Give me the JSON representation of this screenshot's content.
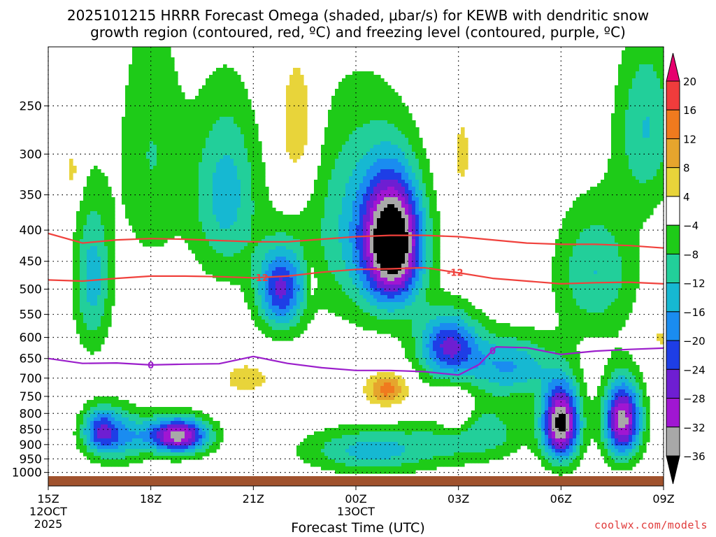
{
  "title_line1": "2025101215 HRRR Forecast Omega (shaded, μbar/s) for KEWB with dendritic snow",
  "title_line2": "growth region (contoured, red, ºC) and freezing level (contoured, purple, ºC)",
  "credit": "coolwx.com/models",
  "chart_data": {
    "type": "contour",
    "xlabel": "Forecast Time (UTC)",
    "ylabel": "",
    "x_ticks": [
      {
        "label": "15Z",
        "sub1": "12OCT",
        "sub2": "2025",
        "hours": 0
      },
      {
        "label": "18Z",
        "sub1": "",
        "sub2": "",
        "hours": 3
      },
      {
        "label": "21Z",
        "sub1": "",
        "sub2": "",
        "hours": 6
      },
      {
        "label": "00Z",
        "sub1": "13OCT",
        "sub2": "",
        "hours": 9
      },
      {
        "label": "03Z",
        "sub1": "",
        "sub2": "",
        "hours": 12
      },
      {
        "label": "06Z",
        "sub1": "",
        "sub2": "",
        "hours": 15
      },
      {
        "label": "09Z",
        "sub1": "",
        "sub2": "",
        "hours": 18
      }
    ],
    "x_range_hours": [
      0,
      18
    ],
    "y_axis": "pressure_hPa",
    "y_ticks": [
      250,
      300,
      350,
      400,
      450,
      500,
      550,
      600,
      650,
      700,
      750,
      800,
      850,
      900,
      950,
      1000
    ],
    "y_range": [
      200,
      1025
    ],
    "y_scale": "log_pressure_inverted",
    "grid": "dotted",
    "colorbar": {
      "labels": [
        "20",
        "16",
        "12",
        "8",
        "4",
        "−4",
        "−8",
        "−12",
        "−16",
        "−20",
        "−24",
        "−28",
        "−32",
        "−36"
      ],
      "colors": [
        "#e6006e",
        "#f03c3c",
        "#f07a1e",
        "#e6a52d",
        "#e8d43a",
        "#ffffff",
        "#1ecb18",
        "#22cf9a",
        "#16b8d2",
        "#1a8cf0",
        "#1e3ee6",
        "#6e1ed2",
        "#a016d2",
        "#a8a8a8",
        "#000000"
      ]
    },
    "omega_features": [
      {
        "t": 1.3,
        "p": 480,
        "v": -14,
        "rt": 0.55,
        "rp": 140
      },
      {
        "t": 3.0,
        "p": 300,
        "v": -8,
        "rt": 1.0,
        "rp": 150
      },
      {
        "t": 5.2,
        "p": 350,
        "v": -14,
        "rt": 1.0,
        "rp": 120
      },
      {
        "t": 6.8,
        "p": 500,
        "v": -24,
        "rt": 0.7,
        "rp": 80
      },
      {
        "t": 9.0,
        "p": 390,
        "v": -12,
        "rt": 1.5,
        "rp": 160
      },
      {
        "t": 10.1,
        "p": 420,
        "v": -40,
        "rt": 0.85,
        "rp": 100
      },
      {
        "t": 11.7,
        "p": 620,
        "v": -24,
        "rt": 0.9,
        "rp": 80
      },
      {
        "t": 13.5,
        "p": 670,
        "v": -16,
        "rt": 1.3,
        "rp": 80
      },
      {
        "t": 16.0,
        "p": 470,
        "v": -12,
        "rt": 1.2,
        "rp": 120
      },
      {
        "t": 17.5,
        "p": 270,
        "v": -12,
        "rt": 0.9,
        "rp": 90
      },
      {
        "t": 2.0,
        "p": 870,
        "v": -16,
        "rt": 0.9,
        "rp": 90
      },
      {
        "t": 1.5,
        "p": 850,
        "v": -14,
        "rt": 0.5,
        "rp": 70
      },
      {
        "t": 3.8,
        "p": 870,
        "v": -34,
        "rt": 0.9,
        "rp": 60
      },
      {
        "t": 9.5,
        "p": 920,
        "v": -14,
        "rt": 2.0,
        "rp": 80
      },
      {
        "t": 12.5,
        "p": 860,
        "v": -12,
        "rt": 1.4,
        "rp": 90
      },
      {
        "t": 15.0,
        "p": 830,
        "v": -38,
        "rt": 0.55,
        "rp": 120
      },
      {
        "t": 16.8,
        "p": 820,
        "v": -34,
        "rt": 0.55,
        "rp": 120
      },
      {
        "t": 7.3,
        "p": 270,
        "v": 9,
        "rt": 0.55,
        "rp": 70
      },
      {
        "t": 0.7,
        "p": 320,
        "v": 6,
        "rt": 0.25,
        "rp": 35
      },
      {
        "t": 5.8,
        "p": 700,
        "v": 7,
        "rt": 0.7,
        "rp": 40
      },
      {
        "t": 9.9,
        "p": 730,
        "v": 14,
        "rt": 0.6,
        "rp": 45
      },
      {
        "t": 11.9,
        "p": 800,
        "v": 10,
        "rt": 0.55,
        "rp": 75
      },
      {
        "t": 12.1,
        "p": 300,
        "v": 6,
        "rt": 0.25,
        "rp": 45
      },
      {
        "t": 7.7,
        "p": 480,
        "v": 5,
        "rt": 0.2,
        "rp": 50
      },
      {
        "t": 17.9,
        "p": 600,
        "v": 5,
        "rt": 0.4,
        "rp": 30
      }
    ],
    "dgz_contours": [
      {
        "label": "-12",
        "label_pos_hours": [
          6.2,
          11.9
        ],
        "points": [
          [
            0,
            483
          ],
          [
            1,
            485
          ],
          [
            2,
            480
          ],
          [
            3,
            476
          ],
          [
            4,
            476
          ],
          [
            5,
            477
          ],
          [
            6,
            479
          ],
          [
            7,
            476
          ],
          [
            8,
            469
          ],
          [
            9,
            464
          ],
          [
            10,
            463
          ],
          [
            11,
            461
          ],
          [
            12,
            470
          ],
          [
            13,
            480
          ],
          [
            14,
            485
          ],
          [
            15,
            490
          ],
          [
            16,
            488
          ],
          [
            17,
            487
          ],
          [
            18,
            490
          ]
        ]
      },
      {
        "label": "",
        "label_pos_hours": [],
        "points": [
          [
            0,
            405
          ],
          [
            1,
            420
          ],
          [
            2,
            415
          ],
          [
            3,
            413
          ],
          [
            4,
            414
          ],
          [
            5,
            416
          ],
          [
            6,
            418
          ],
          [
            7,
            418
          ],
          [
            8,
            414
          ],
          [
            9,
            410
          ],
          [
            10,
            408
          ],
          [
            11,
            408
          ],
          [
            12,
            410
          ],
          [
            13,
            415
          ],
          [
            14,
            420
          ],
          [
            15,
            422
          ],
          [
            16,
            422
          ],
          [
            17,
            424
          ],
          [
            18,
            428
          ]
        ]
      }
    ],
    "freezing_level": {
      "label": "0",
      "label_pos_hours": [
        3.0,
        13.0
      ],
      "points": [
        [
          0,
          650
        ],
        [
          1,
          662
        ],
        [
          2,
          661
        ],
        [
          3,
          666
        ],
        [
          4,
          664
        ],
        [
          5,
          663
        ],
        [
          6,
          645
        ],
        [
          7,
          662
        ],
        [
          8,
          673
        ],
        [
          9,
          680
        ],
        [
          10,
          680
        ],
        [
          11,
          683
        ],
        [
          12,
          692
        ],
        [
          12.6,
          665
        ],
        [
          13.1,
          622
        ],
        [
          14,
          624
        ],
        [
          15,
          640
        ],
        [
          16,
          632
        ],
        [
          17,
          628
        ],
        [
          18,
          625
        ]
      ]
    }
  }
}
